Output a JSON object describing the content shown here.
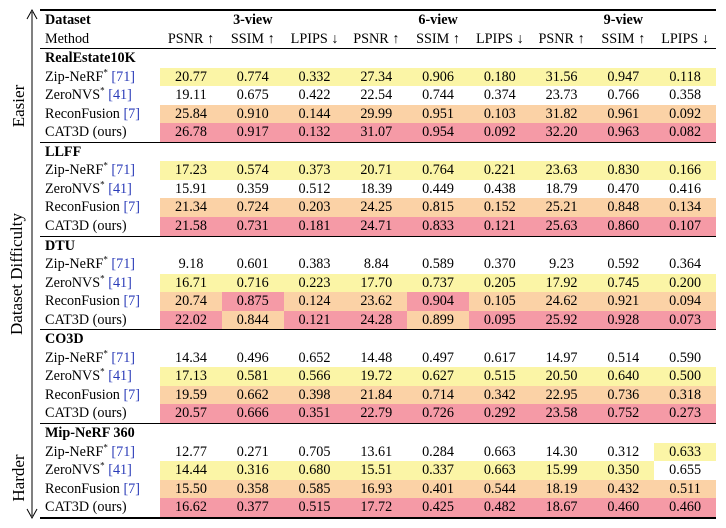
{
  "side_labels": {
    "axis": "Dataset Difficulty",
    "easier": "Easier",
    "harder": "Harder"
  },
  "header": {
    "dataset_label": "Dataset",
    "method_label": "Method",
    "groups": [
      "3-view",
      "6-view",
      "9-view"
    ],
    "metrics": [
      "PSNR ↑",
      "SSIM ↑",
      "LPIPS ↓",
      "PSNR ↑",
      "SSIM ↑",
      "LPIPS ↓",
      "PSNR ↑",
      "SSIM ↑",
      "LPIPS ↓"
    ]
  },
  "colors": {
    "first": "#f59aa6",
    "second": "#fbd2a6",
    "third": "#fbf5a6",
    "citation": "#2a3bb8"
  },
  "datasets": [
    {
      "name": "RealEstate10K",
      "rows": [
        {
          "method": "Zip-NeRF",
          "sup": "*",
          "cite": "[71]",
          "values": [
            "20.77",
            "0.774",
            "0.332",
            "27.34",
            "0.906",
            "0.180",
            "31.56",
            "0.947",
            "0.118"
          ],
          "ranks": [
            "third",
            "third",
            "third",
            "third",
            "third",
            "third",
            "third",
            "third",
            "third"
          ]
        },
        {
          "method": "ZeroNVS",
          "sup": "*",
          "cite": "[41]",
          "values": [
            "19.11",
            "0.675",
            "0.422",
            "22.54",
            "0.744",
            "0.374",
            "23.73",
            "0.766",
            "0.358"
          ],
          "ranks": [
            "",
            "",
            "",
            "",
            "",
            "",
            "",
            "",
            ""
          ]
        },
        {
          "method": "ReconFusion ",
          "sup": "",
          "cite": "[7]",
          "values": [
            "25.84",
            "0.910",
            "0.144",
            "29.99",
            "0.951",
            "0.103",
            "31.82",
            "0.961",
            "0.092"
          ],
          "ranks": [
            "second",
            "second",
            "second",
            "second",
            "second",
            "second",
            "second",
            "second",
            "second"
          ]
        },
        {
          "method": "CAT3D (ours)",
          "sup": "",
          "cite": "",
          "values": [
            "26.78",
            "0.917",
            "0.132",
            "31.07",
            "0.954",
            "0.092",
            "32.20",
            "0.963",
            "0.082"
          ],
          "ranks": [
            "first",
            "first",
            "first",
            "first",
            "first",
            "first",
            "first",
            "first",
            "first"
          ]
        }
      ]
    },
    {
      "name": "LLFF",
      "rows": [
        {
          "method": "Zip-NeRF",
          "sup": "*",
          "cite": "[71]",
          "values": [
            "17.23",
            "0.574",
            "0.373",
            "20.71",
            "0.764",
            "0.221",
            "23.63",
            "0.830",
            "0.166"
          ],
          "ranks": [
            "third",
            "third",
            "third",
            "third",
            "third",
            "third",
            "third",
            "third",
            "third"
          ]
        },
        {
          "method": "ZeroNVS",
          "sup": "*",
          "cite": "[41]",
          "values": [
            "15.91",
            "0.359",
            "0.512",
            "18.39",
            "0.449",
            "0.438",
            "18.79",
            "0.470",
            "0.416"
          ],
          "ranks": [
            "",
            "",
            "",
            "",
            "",
            "",
            "",
            "",
            ""
          ]
        },
        {
          "method": "ReconFusion ",
          "sup": "",
          "cite": "[7]",
          "values": [
            "21.34",
            "0.724",
            "0.203",
            "24.25",
            "0.815",
            "0.152",
            "25.21",
            "0.848",
            "0.134"
          ],
          "ranks": [
            "second",
            "second",
            "second",
            "second",
            "second",
            "second",
            "second",
            "second",
            "second"
          ]
        },
        {
          "method": "CAT3D (ours)",
          "sup": "",
          "cite": "",
          "values": [
            "21.58",
            "0.731",
            "0.181",
            "24.71",
            "0.833",
            "0.121",
            "25.63",
            "0.860",
            "0.107"
          ],
          "ranks": [
            "first",
            "first",
            "first",
            "first",
            "first",
            "first",
            "first",
            "first",
            "first"
          ]
        }
      ]
    },
    {
      "name": "DTU",
      "rows": [
        {
          "method": "Zip-NeRF",
          "sup": "*",
          "cite": "[71]",
          "values": [
            "9.18",
            "0.601",
            "0.383",
            "8.84",
            "0.589",
            "0.370",
            "9.23",
            "0.592",
            "0.364"
          ],
          "ranks": [
            "",
            "",
            "",
            "",
            "",
            "",
            "",
            "",
            ""
          ]
        },
        {
          "method": "ZeroNVS",
          "sup": "*",
          "cite": "[41]",
          "values": [
            "16.71",
            "0.716",
            "0.223",
            "17.70",
            "0.737",
            "0.205",
            "17.92",
            "0.745",
            "0.200"
          ],
          "ranks": [
            "third",
            "third",
            "third",
            "third",
            "third",
            "third",
            "third",
            "third",
            "third"
          ]
        },
        {
          "method": "ReconFusion ",
          "sup": "",
          "cite": "[7]",
          "values": [
            "20.74",
            "0.875",
            "0.124",
            "23.62",
            "0.904",
            "0.105",
            "24.62",
            "0.921",
            "0.094"
          ],
          "ranks": [
            "second",
            "first",
            "second",
            "second",
            "first",
            "second",
            "second",
            "second",
            "second"
          ]
        },
        {
          "method": "CAT3D (ours)",
          "sup": "",
          "cite": "",
          "values": [
            "22.02",
            "0.844",
            "0.121",
            "24.28",
            "0.899",
            "0.095",
            "25.92",
            "0.928",
            "0.073"
          ],
          "ranks": [
            "first",
            "second",
            "first",
            "first",
            "second",
            "first",
            "first",
            "first",
            "first"
          ]
        }
      ]
    },
    {
      "name": "CO3D",
      "rows": [
        {
          "method": "Zip-NeRF",
          "sup": "*",
          "cite": "[71]",
          "values": [
            "14.34",
            "0.496",
            "0.652",
            "14.48",
            "0.497",
            "0.617",
            "14.97",
            "0.514",
            "0.590"
          ],
          "ranks": [
            "",
            "",
            "",
            "",
            "",
            "",
            "",
            "",
            ""
          ]
        },
        {
          "method": "ZeroNVS",
          "sup": "*",
          "cite": "[41]",
          "values": [
            "17.13",
            "0.581",
            "0.566",
            "19.72",
            "0.627",
            "0.515",
            "20.50",
            "0.640",
            "0.500"
          ],
          "ranks": [
            "third",
            "third",
            "third",
            "third",
            "third",
            "third",
            "third",
            "third",
            "third"
          ]
        },
        {
          "method": "ReconFusion ",
          "sup": "",
          "cite": "[7]",
          "values": [
            "19.59",
            "0.662",
            "0.398",
            "21.84",
            "0.714",
            "0.342",
            "22.95",
            "0.736",
            "0.318"
          ],
          "ranks": [
            "second",
            "second",
            "second",
            "second",
            "second",
            "second",
            "second",
            "second",
            "second"
          ]
        },
        {
          "method": "CAT3D (ours)",
          "sup": "",
          "cite": "",
          "values": [
            "20.57",
            "0.666",
            "0.351",
            "22.79",
            "0.726",
            "0.292",
            "23.58",
            "0.752",
            "0.273"
          ],
          "ranks": [
            "first",
            "first",
            "first",
            "first",
            "first",
            "first",
            "first",
            "first",
            "first"
          ]
        }
      ]
    },
    {
      "name": "Mip-NeRF 360",
      "rows": [
        {
          "method": "Zip-NeRF",
          "sup": "*",
          "cite": "[71]",
          "values": [
            "12.77",
            "0.271",
            "0.705",
            "13.61",
            "0.284",
            "0.663",
            "14.30",
            "0.312",
            "0.633"
          ],
          "ranks": [
            "",
            "",
            "",
            "",
            "",
            "",
            "",
            "",
            "third"
          ]
        },
        {
          "method": "ZeroNVS",
          "sup": "*",
          "cite": "[41]",
          "values": [
            "14.44",
            "0.316",
            "0.680",
            "15.51",
            "0.337",
            "0.663",
            "15.99",
            "0.350",
            "0.655"
          ],
          "ranks": [
            "third",
            "third",
            "third",
            "third",
            "third",
            "third",
            "third",
            "third",
            ""
          ]
        },
        {
          "method": "ReconFusion ",
          "sup": "",
          "cite": "[7]",
          "values": [
            "15.50",
            "0.358",
            "0.585",
            "16.93",
            "0.401",
            "0.544",
            "18.19",
            "0.432",
            "0.511"
          ],
          "ranks": [
            "second",
            "second",
            "second",
            "second",
            "second",
            "second",
            "second",
            "second",
            "second"
          ]
        },
        {
          "method": "CAT3D (ours)",
          "sup": "",
          "cite": "",
          "values": [
            "16.62",
            "0.377",
            "0.515",
            "17.72",
            "0.425",
            "0.482",
            "18.67",
            "0.460",
            "0.460"
          ],
          "ranks": [
            "first",
            "first",
            "first",
            "first",
            "first",
            "first",
            "first",
            "first",
            "first"
          ]
        }
      ]
    }
  ]
}
